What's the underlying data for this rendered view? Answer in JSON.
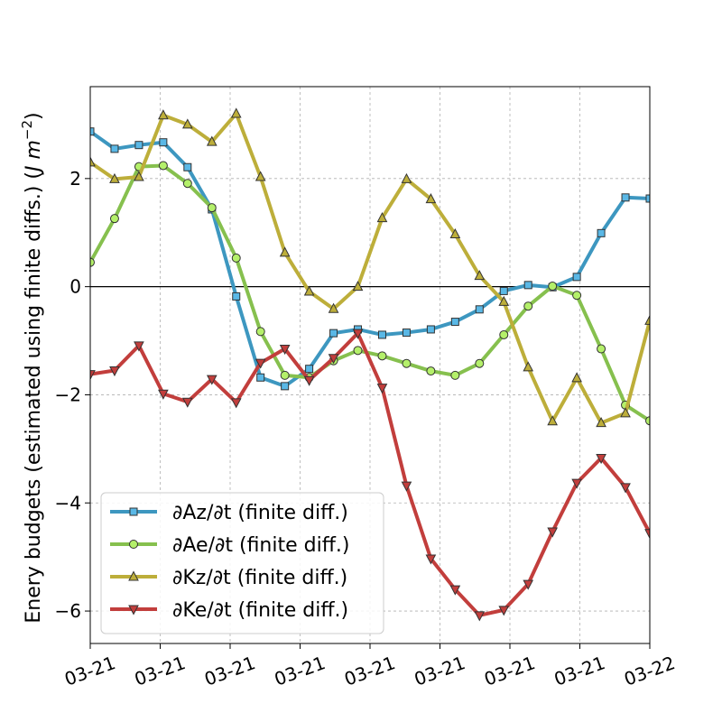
{
  "chart_data": {
    "type": "line",
    "title": "",
    "ylabel_main": "Enery budgets (estimated using finite diffs.) (",
    "ylabel_unit": "J m",
    "ylabel_sup": "−2",
    "ylabel_end": ")",
    "xlabel": "",
    "xtick_labels": [
      "03-21",
      "03-21",
      "03-21",
      "03-21",
      "03-21",
      "03-21",
      "03-21",
      "03-21",
      "03-22"
    ],
    "xlim": [
      0,
      23
    ],
    "ylim": [
      -6.6,
      3.7
    ],
    "yticks": [
      -6,
      -4,
      -2,
      0,
      2
    ],
    "ytick_labels": [
      "−6",
      "−4",
      "−2",
      "0",
      "2"
    ],
    "grid": true,
    "zero_line": true,
    "legend_position": "lower-left",
    "series": [
      {
        "name": "∂Az/∂t (finite diff.)",
        "color": "#3d97c0",
        "marker_face": "#5ab8e6",
        "marker": "square",
        "x": [
          0,
          1,
          2,
          3,
          4,
          5,
          6,
          7,
          8,
          9,
          10,
          11,
          12,
          13,
          14,
          15,
          16,
          17,
          18,
          19,
          20,
          21,
          22,
          23
        ],
        "values": [
          2.87,
          2.55,
          2.62,
          2.67,
          2.21,
          1.43,
          -0.18,
          -1.68,
          -1.84,
          -1.52,
          -0.86,
          -0.79,
          -0.89,
          -0.85,
          -0.79,
          -0.65,
          -0.42,
          -0.08,
          0.03,
          -0.01,
          0.18,
          0.99,
          1.65,
          1.63
        ]
      },
      {
        "name": "∂Ae/∂t (finite diff.)",
        "color": "#86c04e",
        "marker_face": "#b4f06a",
        "marker": "circle",
        "x": [
          0,
          1,
          2,
          3,
          4,
          5,
          6,
          7,
          8,
          9,
          10,
          11,
          12,
          13,
          14,
          15,
          16,
          17,
          18,
          19,
          20,
          21,
          22,
          23
        ],
        "values": [
          0.45,
          1.26,
          2.22,
          2.24,
          1.91,
          1.46,
          0.53,
          -0.83,
          -1.64,
          -1.68,
          -1.37,
          -1.18,
          -1.28,
          -1.42,
          -1.56,
          -1.64,
          -1.42,
          -0.89,
          -0.36,
          0.01,
          -0.16,
          -1.15,
          -2.19,
          -2.48
        ]
      },
      {
        "name": "∂Kz/∂t (finite diff.)",
        "color": "#bdae3a",
        "marker_face": "#bdae3a",
        "marker": "triangle-up",
        "x": [
          0,
          1,
          2,
          3,
          4,
          5,
          6,
          7,
          8,
          9,
          10,
          11,
          12,
          13,
          14,
          15,
          16,
          17,
          18,
          19,
          20,
          21,
          22,
          23
        ],
        "values": [
          2.3,
          1.99,
          2.03,
          3.17,
          3.0,
          2.68,
          3.2,
          2.03,
          0.63,
          -0.09,
          -0.41,
          0.0,
          1.27,
          1.99,
          1.62,
          0.97,
          0.2,
          -0.28,
          -1.49,
          -2.49,
          -1.69,
          -2.52,
          -2.34,
          -0.63
        ]
      },
      {
        "name": "∂Ke/∂t (finite diff.)",
        "color": "#c23e3c",
        "marker_face": "#c23e3c",
        "marker": "triangle-down",
        "x": [
          0,
          1,
          2,
          3,
          4,
          5,
          6,
          7,
          8,
          9,
          10,
          11,
          12,
          13,
          14,
          15,
          16,
          17,
          18,
          19,
          20,
          21,
          22,
          23
        ],
        "values": [
          -1.62,
          -1.55,
          -1.09,
          -1.98,
          -2.13,
          -1.71,
          -2.14,
          -1.41,
          -1.15,
          -1.73,
          -1.32,
          -0.86,
          -1.87,
          -3.68,
          -5.03,
          -5.6,
          -6.08,
          -5.98,
          -5.5,
          -4.53,
          -3.63,
          -3.17,
          -3.71,
          -4.56
        ]
      }
    ]
  }
}
